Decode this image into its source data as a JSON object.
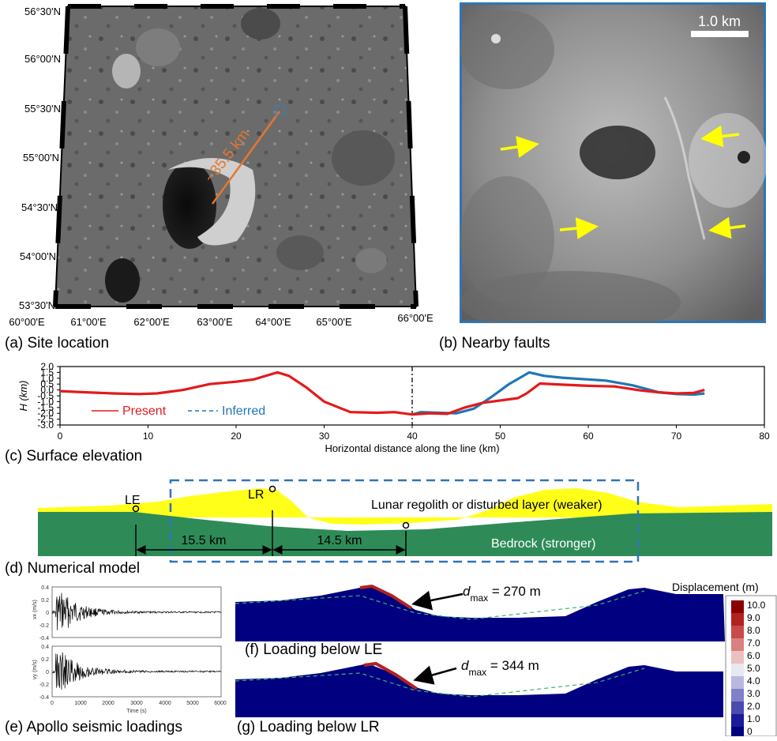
{
  "panels": {
    "a": {
      "caption": "(a) Site location",
      "lat_labels": [
        "56°30'N",
        "56°00'N",
        "55°30'N",
        "55°00'N",
        "54°30'N",
        "54°00'N",
        "53°30'N"
      ],
      "lon_labels": [
        "60°00'E",
        "61°00'E",
        "62°00'E",
        "63°00'E",
        "64°00'E",
        "65°00'E",
        "66°00'E"
      ],
      "distance_label": "~35.5 km",
      "accent_color": "#e8762c"
    },
    "b": {
      "caption": "(b) Nearby faults",
      "scale_label": "1.0 km",
      "frame_color": "#2e75b6",
      "arrow_color": "#ffff00",
      "arrow_count": 4
    },
    "c": {
      "caption": "(c) Surface elevation",
      "legend_present": "Present",
      "legend_inferred": "Inferred",
      "present_color": "#e31a1c",
      "inferred_color": "#1f77b4"
    },
    "d": {
      "caption": "(d) Numerical model",
      "point_le": "LE",
      "point_lr": "LR",
      "dist_1": "15.5 km",
      "dist_2": "14.5 km",
      "layer_top": "Lunar regolith or disturbed layer (weaker)",
      "layer_bottom": "Bedrock (stronger)",
      "regolith_color": "#ffff1a",
      "bedrock_color": "#2e8b57",
      "box_color": "#2e75b6"
    },
    "e": {
      "caption": "(e) Apollo seismic loadings",
      "ylabel_1": "vx (m/s)",
      "ylabel_2": "vy (m/s)",
      "xlabel": "Time (s)",
      "yticks": [
        "0.4",
        "0.2",
        "0",
        "-0.2",
        "-0.4"
      ],
      "xticks": [
        "0",
        "1000",
        "2000",
        "3000",
        "4000",
        "5000",
        "6000"
      ]
    },
    "f": {
      "caption": "(f) Loading below LE",
      "dmax_symbol": "d",
      "dmax_sub": "max",
      "dmax_value": " = 270 m"
    },
    "g": {
      "caption": "(g) Loading below LR",
      "dmax_symbol": "d",
      "dmax_sub": "max",
      "dmax_value": " = 344 m"
    },
    "colorbar": {
      "title": "Displacement (m)",
      "ticks": [
        "10.0",
        "9.0",
        "8.0",
        "7.0",
        "6.0",
        "5.0",
        "4.0",
        "3.0",
        "2.0",
        "1.0",
        "0"
      ],
      "colors": [
        "#8b0000",
        "#b22222",
        "#c84a4a",
        "#d98080",
        "#ebc0c0",
        "#e8e8f0",
        "#b8b8e0",
        "#8080c8",
        "#4a4ab0",
        "#1a1a9a",
        "#000080"
      ]
    }
  },
  "chart_data": {
    "type": "line",
    "title": "",
    "xlabel": "Horizontal distance along the line (km)",
    "ylabel": "H (km)",
    "xlim": [
      0,
      80
    ],
    "ylim": [
      -3.0,
      2.0
    ],
    "xticks": [
      0,
      10,
      20,
      30,
      40,
      50,
      60,
      70,
      80
    ],
    "yticks": [
      2.0,
      1.5,
      1.0,
      0.5,
      0.0,
      -0.5,
      -1.0,
      -1.5,
      -2.0,
      -2.5,
      -3.0
    ],
    "series": [
      {
        "name": "Present",
        "style": "solid",
        "color": "#e31a1c",
        "points": [
          [
            0,
            -0.1
          ],
          [
            3,
            -0.2
          ],
          [
            6,
            -0.3
          ],
          [
            9,
            -0.35
          ],
          [
            11,
            -0.3
          ],
          [
            14,
            0.0
          ],
          [
            17,
            0.5
          ],
          [
            20,
            0.7
          ],
          [
            22,
            0.9
          ],
          [
            24.7,
            1.5
          ],
          [
            26,
            1.2
          ],
          [
            28,
            0.2
          ],
          [
            30,
            -1.0
          ],
          [
            32,
            -1.6
          ],
          [
            33,
            -1.9
          ],
          [
            36,
            -1.95
          ],
          [
            38,
            -1.9
          ],
          [
            40,
            -2.1
          ],
          [
            42,
            -2.0
          ],
          [
            44,
            -2.05
          ],
          [
            46,
            -1.5
          ],
          [
            48,
            -1.1
          ],
          [
            50,
            -0.9
          ],
          [
            52,
            -0.7
          ],
          [
            53,
            -0.3
          ],
          [
            54.5,
            0.55
          ],
          [
            57,
            0.45
          ],
          [
            60,
            0.35
          ],
          [
            63,
            0.3
          ],
          [
            66,
            -0.05
          ],
          [
            68,
            -0.2
          ],
          [
            70,
            -0.3
          ],
          [
            72,
            -0.25
          ],
          [
            73.2,
            0.0
          ]
        ]
      },
      {
        "name": "Inferred",
        "style": "solid",
        "color": "#1f77b4",
        "points": [
          [
            40,
            -2.1
          ],
          [
            41,
            -1.9
          ],
          [
            43,
            -1.95
          ],
          [
            45,
            -2.0
          ],
          [
            47,
            -1.6
          ],
          [
            49,
            -0.6
          ],
          [
            51,
            0.5
          ],
          [
            53.3,
            1.5
          ],
          [
            55,
            1.2
          ],
          [
            57,
            1.05
          ],
          [
            60,
            0.9
          ],
          [
            62,
            0.8
          ],
          [
            65,
            0.4
          ],
          [
            68,
            -0.2
          ],
          [
            70,
            -0.35
          ],
          [
            72,
            -0.4
          ],
          [
            73.2,
            -0.3
          ]
        ]
      }
    ],
    "vline_x": 40,
    "legend": "bottom-left"
  }
}
